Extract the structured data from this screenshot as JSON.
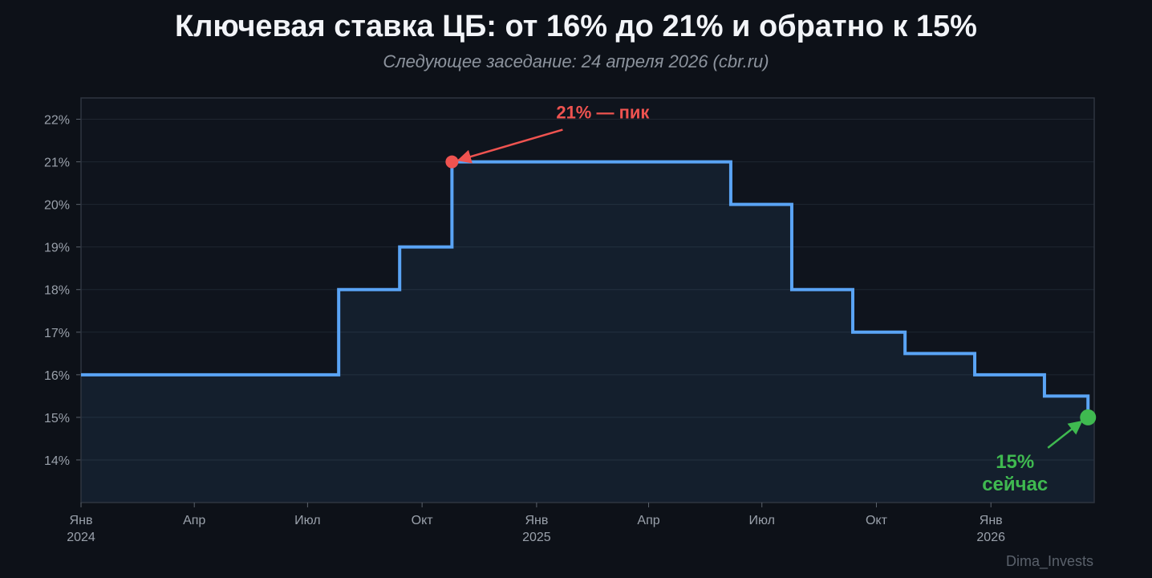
{
  "title": "Ключевая ставка ЦБ: от 16% до 21% и обратно к 15%",
  "subtitle": "Следующее заседание: 24 апреля 2026 (cbr.ru)",
  "watermark": "Dima_Invests",
  "colors": {
    "background": "#0d1118",
    "plot_background": "#111722",
    "line": "#5aa4f5",
    "peak": "#ef5350",
    "current": "#3fb950",
    "axis_text": "#9aa1ab"
  },
  "chart_data": {
    "type": "line",
    "step": true,
    "title": "Ключевая ставка ЦБ: от 16% до 21% и обратно к 15%",
    "subtitle": "Следующее заседание: 24 апреля 2026 (cbr.ru)",
    "xlabel": "",
    "ylabel": "",
    "xlim": [
      "2024-01-01",
      "2026-03-25"
    ],
    "ylim": [
      13,
      22.5
    ],
    "grid": true,
    "y_ticks": [
      14,
      15,
      16,
      17,
      18,
      19,
      20,
      21,
      22
    ],
    "y_tick_labels": [
      "14%",
      "15%",
      "16%",
      "17%",
      "18%",
      "19%",
      "20%",
      "21%",
      "22%"
    ],
    "x_ticks": [
      {
        "date": "2024-01-01",
        "label": "Янв",
        "year": "2024"
      },
      {
        "date": "2024-04-01",
        "label": "Апр",
        "year": ""
      },
      {
        "date": "2024-07-01",
        "label": "Июл",
        "year": ""
      },
      {
        "date": "2024-10-01",
        "label": "Окт",
        "year": ""
      },
      {
        "date": "2025-01-01",
        "label": "Янв",
        "year": "2025"
      },
      {
        "date": "2025-04-01",
        "label": "Апр",
        "year": ""
      },
      {
        "date": "2025-07-01",
        "label": "Июл",
        "year": ""
      },
      {
        "date": "2025-10-01",
        "label": "Окт",
        "year": ""
      },
      {
        "date": "2026-01-01",
        "label": "Янв",
        "year": "2026"
      }
    ],
    "series": [
      {
        "values": [
          {
            "x": "2024-01-01",
            "y": 16
          },
          {
            "x": "2024-07-26",
            "y": 18
          },
          {
            "x": "2024-09-13",
            "y": 19
          },
          {
            "x": "2024-10-25",
            "y": 21
          },
          {
            "x": "2025-06-06",
            "y": 20
          },
          {
            "x": "2025-07-25",
            "y": 18
          },
          {
            "x": "2025-09-12",
            "y": 17
          },
          {
            "x": "2025-10-24",
            "y": 16.5
          },
          {
            "x": "2025-12-19",
            "y": 16
          },
          {
            "x": "2026-02-13",
            "y": 15.5
          },
          {
            "x": "2026-03-20",
            "y": 15
          },
          {
            "x": "2026-03-25",
            "y": 15
          }
        ]
      }
    ],
    "annotations": [
      {
        "kind": "peak",
        "text": "21% — пик",
        "x": "2024-10-25",
        "y": 21
      },
      {
        "kind": "current",
        "text_lines": [
          "15%",
          "сейчас"
        ],
        "x": "2026-03-20",
        "y": 15
      }
    ]
  }
}
